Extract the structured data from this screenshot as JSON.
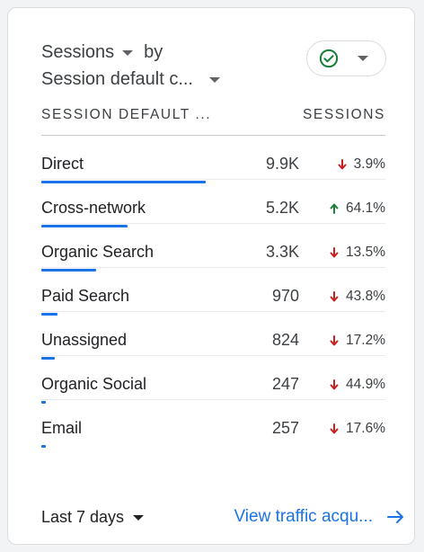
{
  "header": {
    "metric": "Sessions",
    "by": "by",
    "dimension": "Session default c..."
  },
  "status_icon": "check-circle-icon",
  "columns": {
    "dimension": "SESSION DEFAULT ...",
    "metric": "SESSIONS"
  },
  "rows": [
    {
      "channel": "Direct",
      "value": "9.9K",
      "change": "3.9%",
      "direction": "down",
      "bar_fraction": 1.0
    },
    {
      "channel": "Cross-network",
      "value": "5.2K",
      "change": "64.1%",
      "direction": "up",
      "bar_fraction": 0.525
    },
    {
      "channel": "Organic Search",
      "value": "3.3K",
      "change": "13.5%",
      "direction": "down",
      "bar_fraction": 0.333
    },
    {
      "channel": "Paid Search",
      "value": "970",
      "change": "43.8%",
      "direction": "down",
      "bar_fraction": 0.098
    },
    {
      "channel": "Unassigned",
      "value": "824",
      "change": "17.2%",
      "direction": "down",
      "bar_fraction": 0.083
    },
    {
      "channel": "Organic Social",
      "value": "247",
      "change": "44.9%",
      "direction": "down",
      "bar_fraction": 0.025
    },
    {
      "channel": "Email",
      "value": "257",
      "change": "17.6%",
      "direction": "down",
      "bar_fraction": 0.026
    }
  ],
  "footer": {
    "date_range": "Last 7 days",
    "link_label": "View traffic acqu..."
  },
  "colors": {
    "accent": "#1a73e8",
    "down": "#c5221f",
    "up": "#188038",
    "check": "#188038"
  }
}
